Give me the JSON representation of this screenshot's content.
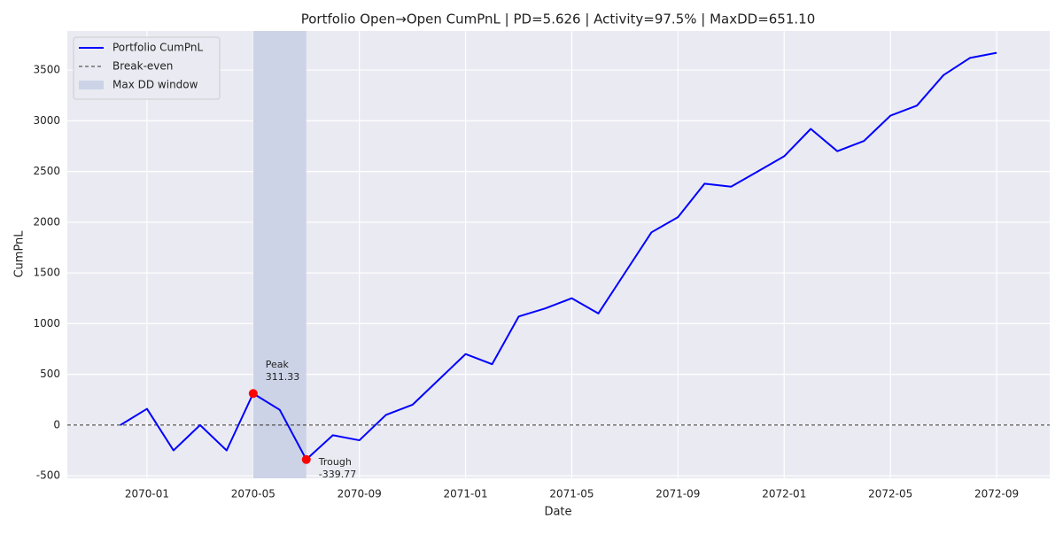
{
  "chart_data": {
    "type": "line",
    "title": "Portfolio Open→Open CumPnL | PD=5.626 | Activity=97.5% | MaxDD=651.10",
    "x_label": "Date",
    "y_label": "CumPnL",
    "x": [
      "2069-12",
      "2070-01",
      "2070-02",
      "2070-03",
      "2070-04",
      "2070-05",
      "2070-06",
      "2070-07",
      "2070-08",
      "2070-09",
      "2070-10",
      "2070-11",
      "2070-12",
      "2071-01",
      "2071-02",
      "2071-03",
      "2071-04",
      "2071-05",
      "2071-06",
      "2071-07",
      "2071-08",
      "2071-09",
      "2071-10",
      "2071-11",
      "2071-12",
      "2072-01",
      "2072-02",
      "2072-03",
      "2072-04",
      "2072-05",
      "2072-06",
      "2072-07",
      "2072-08",
      "2072-09"
    ],
    "series": [
      {
        "name": "Portfolio CumPnL",
        "color": "#0000ff",
        "values": [
          0,
          160,
          -250,
          0,
          -250,
          311.33,
          150,
          -339.77,
          -100,
          -150,
          100,
          200,
          450,
          700,
          600,
          1070,
          1150,
          1250,
          1100,
          1500,
          1900,
          2050,
          2380,
          2350,
          2500,
          2650,
          2920,
          2700,
          2800,
          3050,
          3150,
          3450,
          3620,
          3670
        ]
      }
    ],
    "hline": {
      "name": "Break-even",
      "value": 0,
      "color": "#333333"
    },
    "dd_window": {
      "name": "Max DD window",
      "x": [
        "2070-05",
        "2070-07"
      ],
      "color": "#ccd3e6"
    },
    "annotations": [
      {
        "text": "Peak",
        "x": "2070-05",
        "value": 311.33,
        "color": "#ff0000"
      },
      {
        "text": "Trough",
        "x": "2070-07",
        "value": -339.77,
        "color": "#ff0000"
      }
    ],
    "xlim": [
      "2069-10",
      "2072-11"
    ],
    "xticks": [
      "2070-01",
      "2070-05",
      "2070-09",
      "2071-01",
      "2071-05",
      "2071-09",
      "2072-01",
      "2072-05",
      "2072-09"
    ],
    "ylim": [
      -525,
      3885
    ],
    "yticks": [
      -500,
      0,
      500,
      1000,
      1500,
      2000,
      2500,
      3000,
      3500
    ],
    "grid": true,
    "legend": "upper left"
  }
}
